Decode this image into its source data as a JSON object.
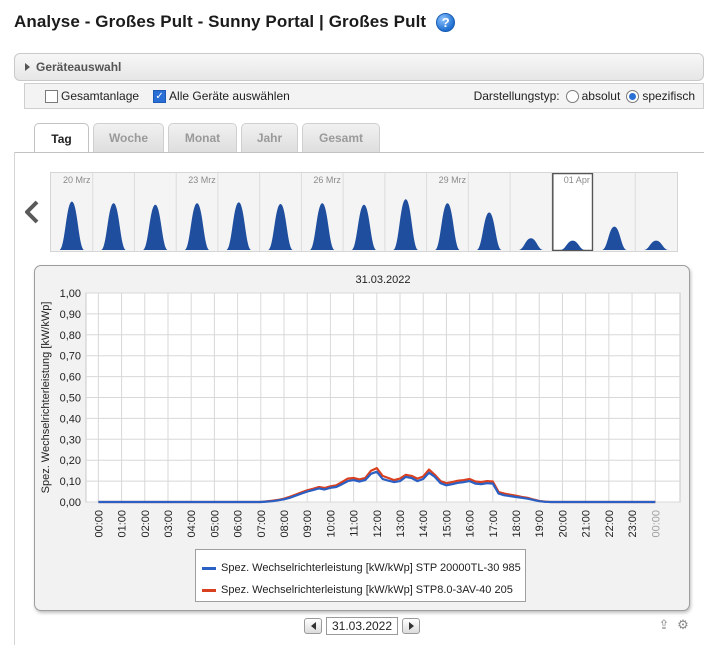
{
  "header": {
    "title": "Analyse - Großes Pult - Sunny Portal | Großes Pult",
    "help_icon": "help-icon"
  },
  "device_selection": {
    "label": "Geräteauswahl"
  },
  "options": {
    "gesamtanlage": {
      "label": "Gesamtanlage",
      "checked": false
    },
    "alle_geraete": {
      "label": "Alle Geräte auswählen",
      "checked": true
    },
    "darstellungstyp_label": "Darstellungstyp:",
    "absolut": {
      "label": "absolut",
      "selected": false
    },
    "spezifisch": {
      "label": "spezifisch",
      "selected": true
    }
  },
  "tabs": [
    {
      "label": "Tag",
      "active": true
    },
    {
      "label": "Woche",
      "active": false
    },
    {
      "label": "Monat",
      "active": false
    },
    {
      "label": "Jahr",
      "active": false
    },
    {
      "label": "Gesamt",
      "active": false
    }
  ],
  "timeline": {
    "date_labels": [
      "20 Mrz",
      "23 Mrz",
      "26 Mrz",
      "29 Mrz",
      "01 Apr"
    ],
    "day_peaks": [
      0.62,
      0.6,
      0.58,
      0.6,
      0.61,
      0.59,
      0.6,
      0.58,
      0.65,
      0.6,
      0.48,
      0.15,
      0.12,
      0.3,
      0.12
    ],
    "selected_day_index": 12,
    "colors": {
      "fill": "#1f4e9e"
    }
  },
  "chart_data": {
    "type": "line",
    "title": "31.03.2022",
    "ylabel": "Spez. Wechselrichterleistung [kW/kWp]",
    "ylim": [
      0,
      1
    ],
    "yticks": [
      "1,00",
      "0,90",
      "0,80",
      "0,70",
      "0,60",
      "0,50",
      "0,40",
      "0,30",
      "0,20",
      "0,10",
      "0,00"
    ],
    "xticks": [
      "00:00",
      "01:00",
      "02:00",
      "03:00",
      "04:00",
      "05:00",
      "06:00",
      "07:00",
      "08:00",
      "09:00",
      "10:00",
      "11:00",
      "12:00",
      "13:00",
      "14:00",
      "15:00",
      "16:00",
      "17:00",
      "18:00",
      "19:00",
      "20:00",
      "21:00",
      "22:00",
      "23:00",
      "00:00"
    ],
    "x": [
      0,
      6.5,
      7,
      7.25,
      7.5,
      7.75,
      8,
      8.25,
      8.5,
      8.75,
      9,
      9.25,
      9.5,
      9.75,
      10,
      10.25,
      10.5,
      10.75,
      11,
      11.25,
      11.5,
      11.75,
      12,
      12.25,
      12.5,
      12.75,
      13,
      13.25,
      13.5,
      13.75,
      14,
      14.25,
      14.5,
      14.75,
      15,
      15.25,
      15.5,
      15.75,
      16,
      16.25,
      16.5,
      16.75,
      17,
      17.25,
      17.5,
      17.75,
      18,
      18.25,
      18.5,
      18.75,
      19,
      19.25,
      19.5,
      20,
      24
    ],
    "series": [
      {
        "name": "Spez. Wechselrichterleistung [kW/kWp] STP 20000TL-30 985",
        "color": "#2a5fc4",
        "values": [
          0,
          0,
          0,
          0.002,
          0.004,
          0.008,
          0.013,
          0.02,
          0.03,
          0.04,
          0.05,
          0.057,
          0.065,
          0.06,
          0.068,
          0.072,
          0.085,
          0.1,
          0.105,
          0.098,
          0.105,
          0.135,
          0.145,
          0.11,
          0.102,
          0.095,
          0.1,
          0.12,
          0.115,
          0.1,
          0.11,
          0.14,
          0.12,
          0.09,
          0.08,
          0.085,
          0.092,
          0.095,
          0.1,
          0.088,
          0.085,
          0.09,
          0.088,
          0.04,
          0.032,
          0.028,
          0.024,
          0.02,
          0.016,
          0.01,
          0.004,
          0.001,
          0,
          0,
          0
        ]
      },
      {
        "name": "Spez. Wechselrichterleistung [kW/kWp] STP8.0-3AV-40 205",
        "color": "#d94020",
        "values": [
          0,
          0,
          0,
          0.003,
          0.006,
          0.01,
          0.016,
          0.025,
          0.035,
          0.046,
          0.056,
          0.063,
          0.072,
          0.067,
          0.075,
          0.08,
          0.095,
          0.112,
          0.115,
          0.108,
          0.115,
          0.15,
          0.162,
          0.125,
          0.115,
          0.105,
          0.112,
          0.13,
          0.125,
          0.112,
          0.122,
          0.155,
          0.13,
          0.1,
          0.09,
          0.095,
          0.102,
          0.105,
          0.11,
          0.098,
          0.095,
          0.1,
          0.098,
          0.048,
          0.04,
          0.035,
          0.03,
          0.024,
          0.02,
          0.012,
          0.005,
          0.002,
          0,
          0,
          0
        ]
      }
    ],
    "legend_position": "bottom",
    "grid": true
  },
  "date_nav": {
    "date": "31.03.2022"
  },
  "tools": {
    "export_icon": "export-icon",
    "settings_icon": "gear-icon"
  }
}
